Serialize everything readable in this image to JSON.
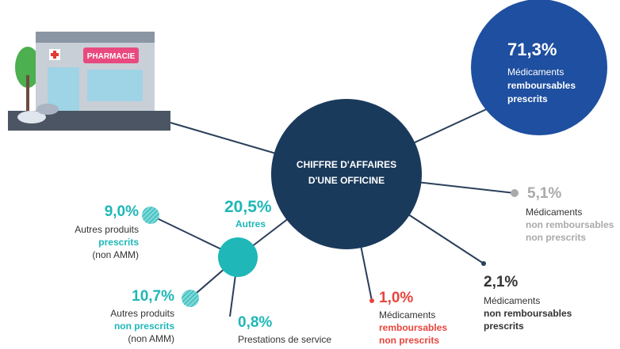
{
  "center": {
    "label": [
      "CHIFFRE D'AFFAIRES",
      "D'UNE OFFICINE"
    ]
  },
  "store_sign": "PHARMACIE",
  "nodes": [
    {
      "value": "71,3%",
      "label": [
        "Médicaments",
        "remboursables",
        "prescrits"
      ]
    },
    {
      "value": "5,1%",
      "label": [
        "Médicaments",
        "non remboursables",
        "non prescrits"
      ]
    },
    {
      "value": "2,1%",
      "label": [
        "Médicaments",
        "non remboursables",
        "prescrits"
      ]
    },
    {
      "value": "1,0%",
      "label": [
        "Médicaments",
        "remboursables",
        "non prescrits"
      ]
    },
    {
      "value": "20,5%",
      "label": [
        "Autres"
      ]
    },
    {
      "value": "9,0%",
      "label": [
        "Autres produits",
        "prescrits",
        "(non AMM)"
      ]
    },
    {
      "value": "10,7%",
      "label": [
        "Autres produits",
        "non prescrits",
        "(non AMM)"
      ]
    },
    {
      "value": "0,8%",
      "label": [
        "Prestations de service"
      ]
    }
  ]
}
